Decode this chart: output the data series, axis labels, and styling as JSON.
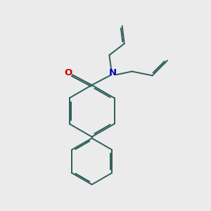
{
  "background_color": "#ebebeb",
  "bond_color": "#2d5f5a",
  "bond_width": 1.4,
  "O_color": "#cc0000",
  "N_color": "#0000bb",
  "figsize": [
    3.0,
    3.0
  ],
  "dpi": 100
}
